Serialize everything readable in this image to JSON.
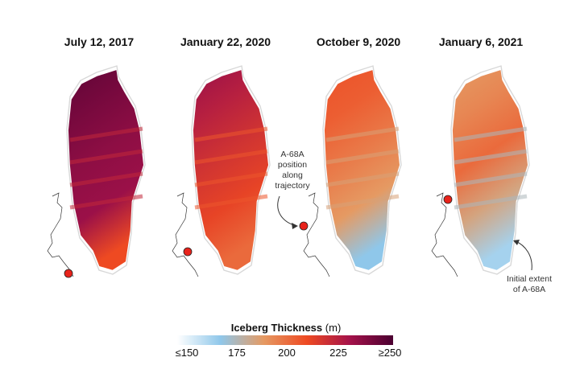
{
  "panels": [
    {
      "date": "July 12, 2017",
      "fill": [
        0.95,
        0.9,
        0.85,
        0.82,
        0.6
      ],
      "marker": true
    },
    {
      "date": "January 22, 2020",
      "fill": [
        0.82,
        0.75,
        0.68,
        0.62,
        0.52
      ],
      "marker": true
    },
    {
      "date": "October 9, 2020",
      "fill": [
        0.58,
        0.55,
        0.48,
        0.4,
        0.2
      ],
      "marker": true
    },
    {
      "date": "January 6, 2021",
      "fill": [
        0.4,
        0.45,
        0.52,
        0.36,
        0.16
      ],
      "marker": true
    }
  ],
  "annotations": {
    "position": "A-68A\nposition\nalong\ntrajectory",
    "extent": "Initial extent\nof A-68A"
  },
  "legend": {
    "title": "Iceberg Thickness",
    "unit": "(m)",
    "ticks": [
      "≤150",
      "175",
      "200",
      "225",
      "≥250"
    ],
    "colors": [
      "#ffffff",
      "#8fc7ea",
      "#e59a63",
      "#ee4a22",
      "#a4124a",
      "#4b0031"
    ]
  },
  "colors": {
    "marker": "#e8231b",
    "coast": "#333333",
    "outline": "#d8d8d8"
  }
}
